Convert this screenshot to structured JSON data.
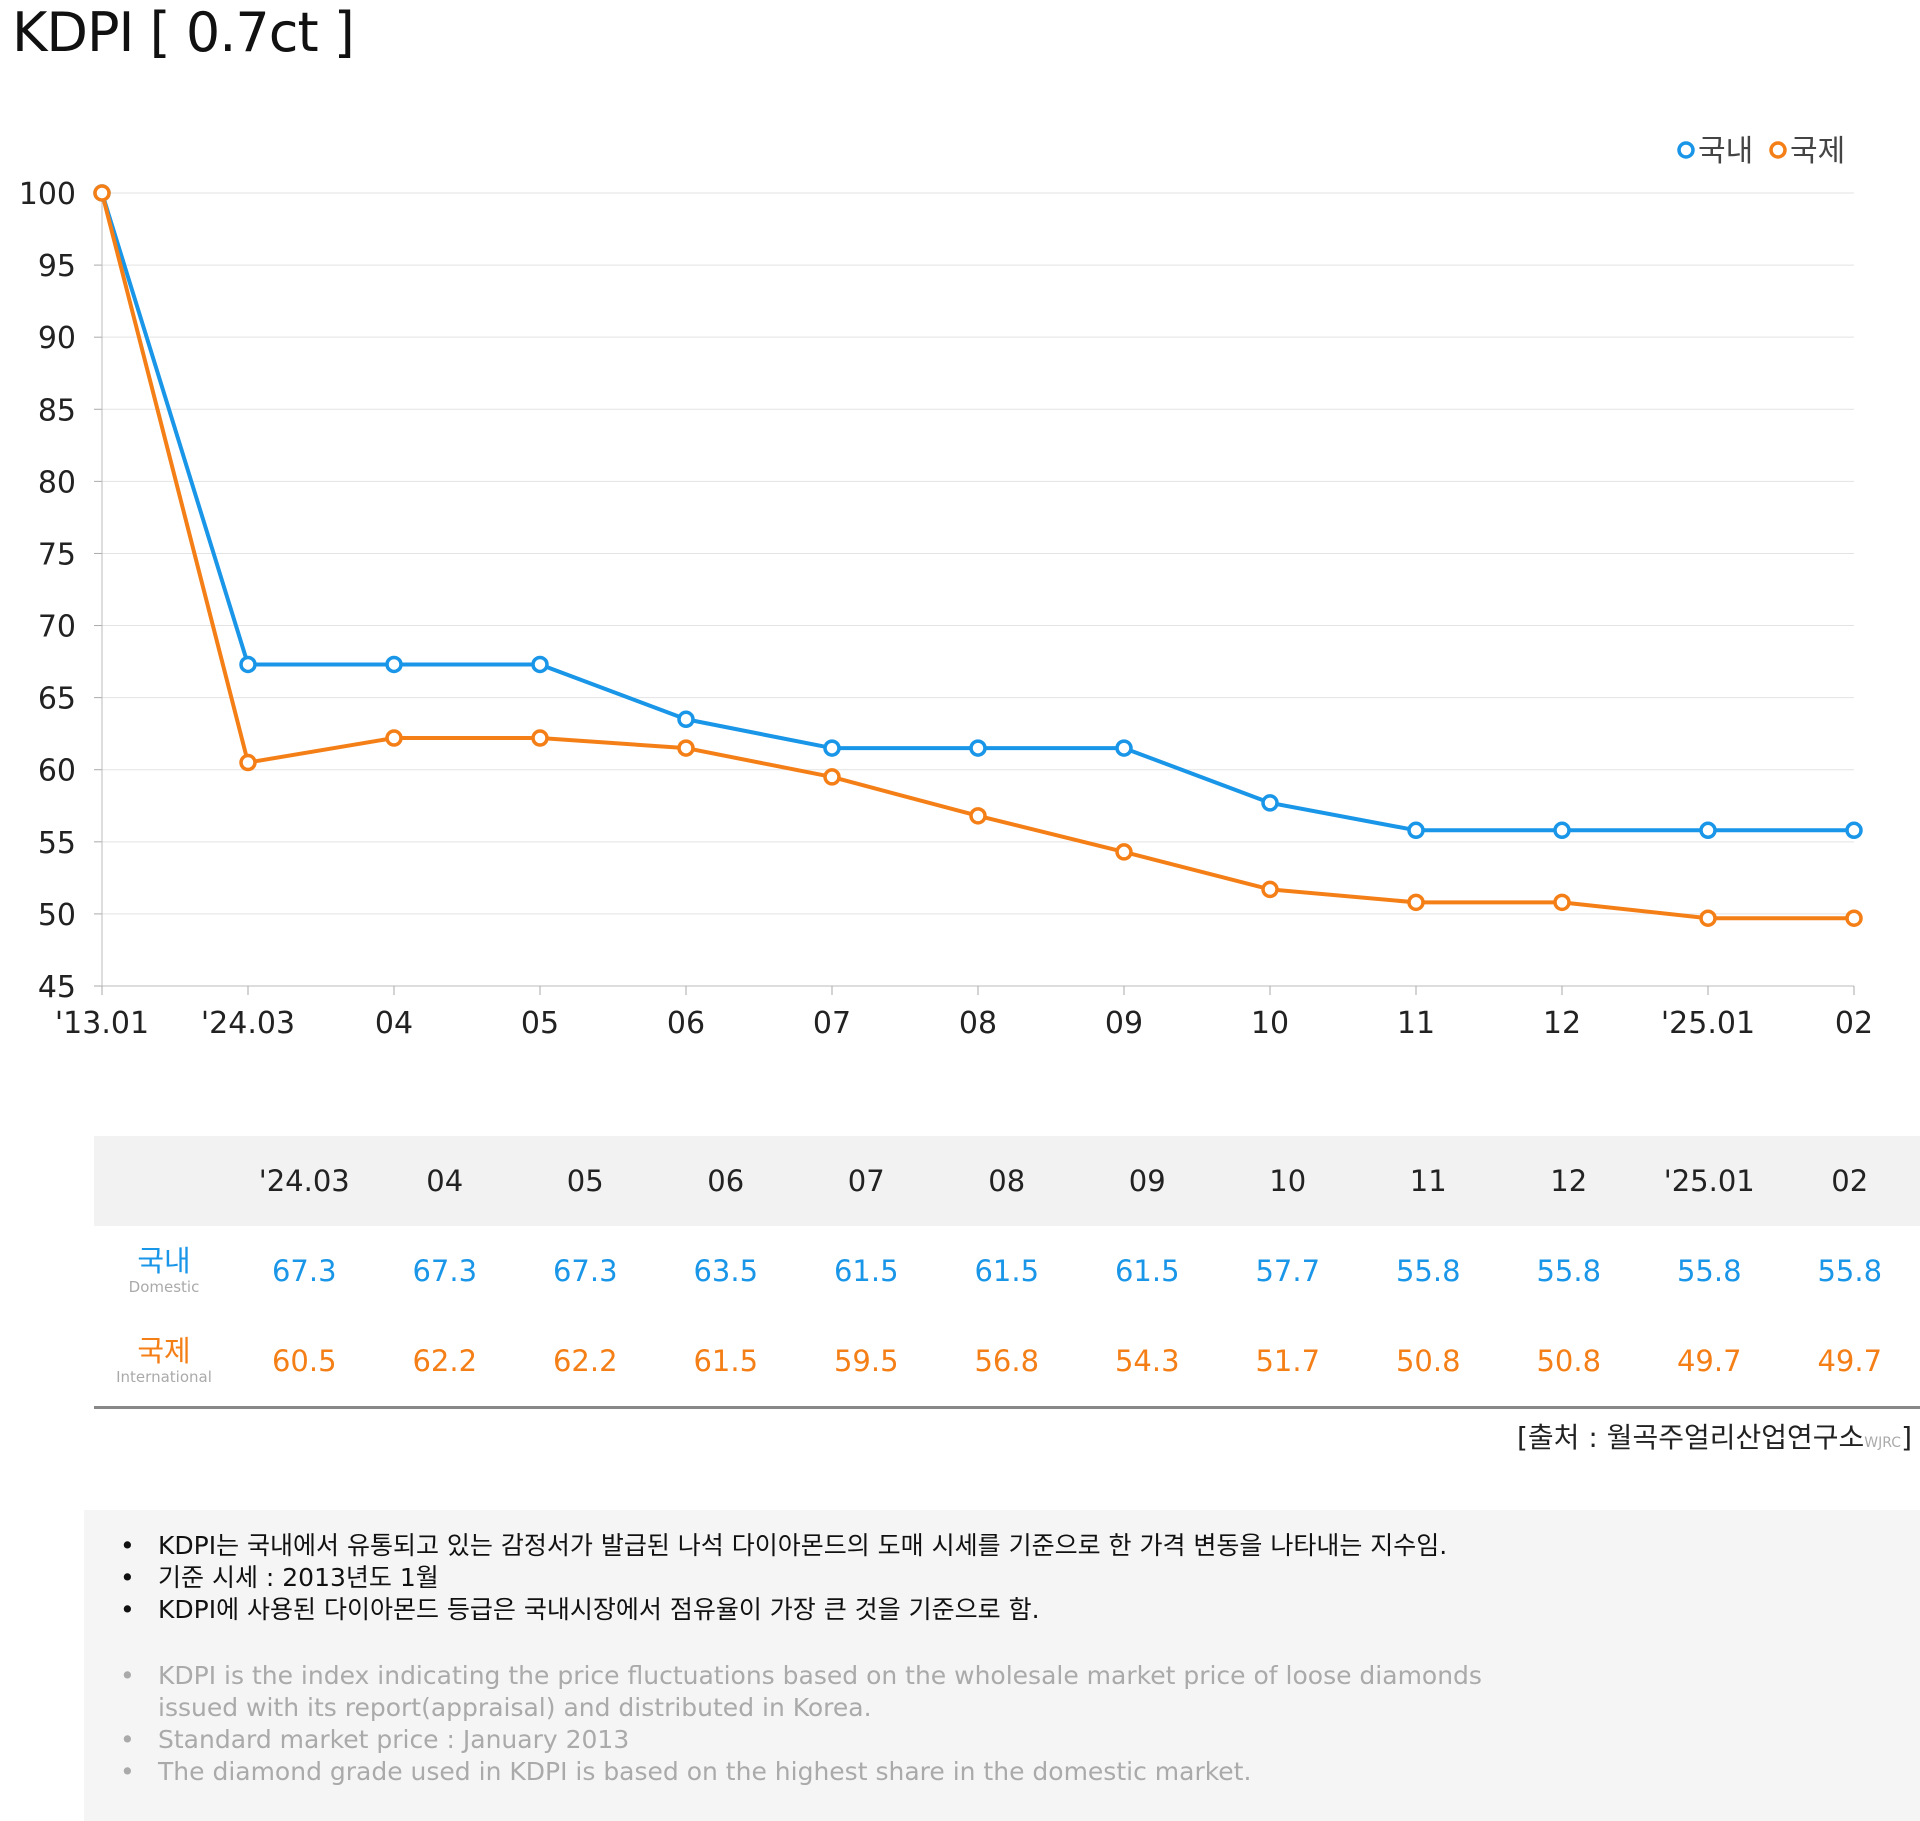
{
  "page": {
    "title": "KDPI [ 0.7ct ]",
    "source_text": "[출처 : 월곡주얼리산업연구소",
    "source_small": "WJRC",
    "source_close": "]"
  },
  "colors": {
    "domestic": "#1a96e8",
    "international": "#f57f17"
  },
  "chart_data": {
    "type": "line",
    "title": "KDPI [ 0.7ct ]",
    "xlabel": "",
    "ylabel": "",
    "categories": [
      "'13.01",
      "'24.03",
      "04",
      "05",
      "06",
      "07",
      "08",
      "09",
      "10",
      "11",
      "12",
      "'25.01",
      "02"
    ],
    "yticks": [
      "100",
      "95",
      "90",
      "85",
      "80",
      "75",
      "70",
      "65",
      "60",
      "55",
      "50",
      "45"
    ],
    "ylim": [
      45,
      100
    ],
    "grid": true,
    "legend_position": "top-right",
    "series": [
      {
        "name": "국내",
        "color": "#1a96e8",
        "values": [
          100,
          67.3,
          67.3,
          67.3,
          63.5,
          61.5,
          61.5,
          61.5,
          57.7,
          55.8,
          55.8,
          55.8,
          55.8
        ]
      },
      {
        "name": "국제",
        "color": "#f57f17",
        "values": [
          100,
          60.5,
          62.2,
          62.2,
          61.5,
          59.5,
          56.8,
          54.3,
          51.7,
          50.8,
          50.8,
          49.7,
          49.7
        ]
      }
    ]
  },
  "table": {
    "columns": [
      "'24.03",
      "04",
      "05",
      "06",
      "07",
      "08",
      "09",
      "10",
      "11",
      "12",
      "'25.01",
      "02"
    ],
    "domestic": {
      "label": "국내",
      "sublabel": "Domestic",
      "values": [
        "67.3",
        "67.3",
        "67.3",
        "63.5",
        "61.5",
        "61.5",
        "61.5",
        "57.7",
        "55.8",
        "55.8",
        "55.8",
        "55.8"
      ]
    },
    "international": {
      "label": "국제",
      "sublabel": "International",
      "values": [
        "60.5",
        "62.2",
        "62.2",
        "61.5",
        "59.5",
        "56.8",
        "54.3",
        "51.7",
        "50.8",
        "50.8",
        "49.7",
        "49.7"
      ]
    }
  },
  "notes": {
    "korean": [
      "KDPI는 국내에서 유통되고 있는 감정서가 발급된 나석 다이아몬드의 도매 시세를 기준으로 한 가격 변동을 나타내는 지수임.",
      "기준 시세 : 2013년도 1월",
      "KDPI에 사용된 다이아몬드 등급은 국내시장에서 점유율이 가장 큰 것을 기준으로 함."
    ],
    "english": [
      "KDPI is the index indicating the price fluctuations based on the wholesale market price of loose diamonds issued with its report(appraisal) and distributed in Korea.",
      "Standard market price : January 2013",
      "The diamond grade used in KDPI is based on the highest share in the domestic market."
    ]
  }
}
